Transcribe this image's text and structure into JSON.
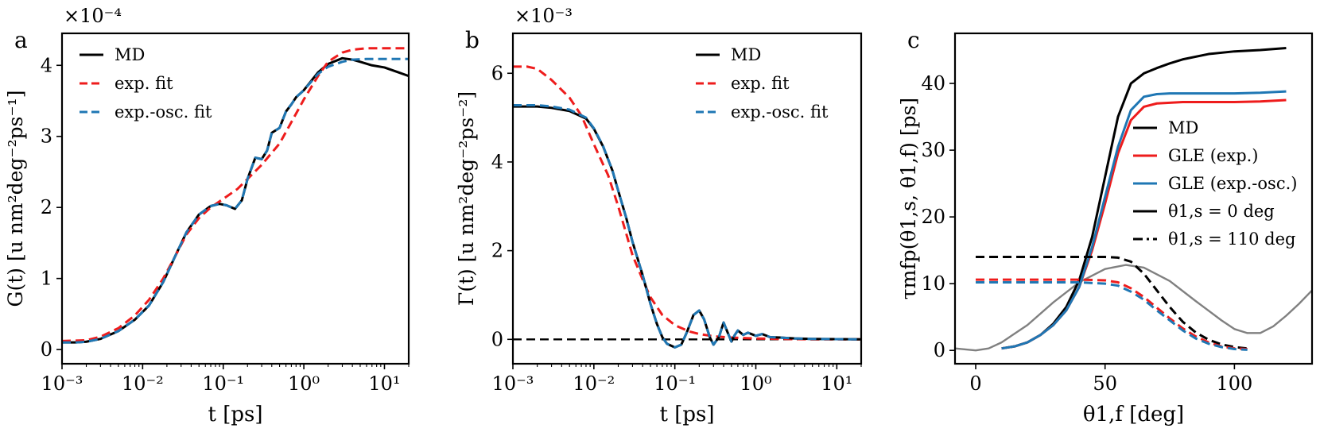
{
  "panels": [
    {
      "letter": "a",
      "exponent": "×10⁻⁴",
      "ylabel": "G(t) [u nm²deg⁻²ps⁻¹]",
      "xlabel": "t [ps]",
      "xscale": "log",
      "xlim": [
        0.001,
        20
      ],
      "ylim": [
        -0.2,
        4.45
      ],
      "yticks": [
        0,
        1,
        2,
        3,
        4
      ],
      "yticklabels": [
        "0",
        "1",
        "2",
        "3",
        "4"
      ],
      "xticks": [
        0.001,
        0.01,
        0.1,
        1,
        10
      ],
      "xticklabels": [
        "10⁻³",
        "10⁻²",
        "10⁻¹",
        "10⁰",
        "10¹"
      ],
      "legend": [
        {
          "label": "MD",
          "color": "#000000",
          "dash": "solid"
        },
        {
          "label": "exp. fit",
          "color": "#ee1c1c",
          "dash": "dashed"
        },
        {
          "label": "exp.-osc. fit",
          "color": "#1f77b4",
          "dash": "dashed"
        }
      ],
      "legend_position": "top-left",
      "series": [
        {
          "color": "#000000",
          "dash": "solid",
          "width": 3,
          "x": [
            0.001,
            0.0015,
            0.002,
            0.003,
            0.005,
            0.008,
            0.012,
            0.018,
            0.025,
            0.035,
            0.05,
            0.07,
            0.09,
            0.11,
            0.14,
            0.17,
            0.2,
            0.25,
            0.3,
            0.35,
            0.4,
            0.5,
            0.6,
            0.7,
            0.8,
            1.0,
            1.5,
            2.0,
            3.0,
            4.0,
            5.0,
            7.0,
            10.0,
            15.0,
            20.0
          ],
          "y": [
            0.1,
            0.1,
            0.11,
            0.15,
            0.26,
            0.42,
            0.62,
            0.95,
            1.3,
            1.65,
            1.9,
            2.02,
            2.05,
            2.03,
            1.98,
            2.1,
            2.4,
            2.7,
            2.68,
            2.8,
            3.05,
            3.12,
            3.35,
            3.45,
            3.55,
            3.65,
            3.9,
            4.02,
            4.1,
            4.08,
            4.05,
            4.0,
            3.97,
            3.9,
            3.85
          ]
        },
        {
          "color": "#ee1c1c",
          "dash": "dashed",
          "width": 3,
          "x": [
            0.001,
            0.002,
            0.003,
            0.005,
            0.008,
            0.012,
            0.018,
            0.025,
            0.035,
            0.05,
            0.07,
            0.1,
            0.15,
            0.2,
            0.3,
            0.5,
            0.7,
            1.0,
            1.5,
            2.0,
            3.0,
            4.0,
            6.0,
            10.0,
            20.0
          ],
          "y": [
            0.12,
            0.13,
            0.18,
            0.3,
            0.48,
            0.7,
            1.0,
            1.3,
            1.62,
            1.85,
            2.0,
            2.12,
            2.26,
            2.4,
            2.6,
            2.9,
            3.2,
            3.52,
            3.85,
            4.05,
            4.18,
            4.22,
            4.24,
            4.24,
            4.24
          ]
        },
        {
          "color": "#1f77b4",
          "dash": "dashed",
          "width": 3,
          "x": [
            0.001,
            0.0015,
            0.002,
            0.003,
            0.005,
            0.008,
            0.012,
            0.018,
            0.025,
            0.035,
            0.05,
            0.07,
            0.09,
            0.11,
            0.14,
            0.17,
            0.2,
            0.25,
            0.3,
            0.35,
            0.4,
            0.5,
            0.6,
            0.7,
            0.8,
            1.0,
            1.5,
            2.0,
            3.0,
            4.0,
            6.0,
            10.0,
            20.0
          ],
          "y": [
            0.1,
            0.1,
            0.11,
            0.15,
            0.26,
            0.42,
            0.62,
            0.95,
            1.3,
            1.65,
            1.9,
            2.02,
            2.05,
            2.03,
            1.98,
            2.1,
            2.4,
            2.7,
            2.68,
            2.8,
            3.05,
            3.12,
            3.35,
            3.45,
            3.55,
            3.65,
            3.88,
            3.98,
            4.05,
            4.08,
            4.09,
            4.09,
            4.09
          ]
        }
      ]
    },
    {
      "letter": "b",
      "exponent": "×10⁻³",
      "ylabel": "Γ(t) [u nm²deg⁻²ps⁻²]",
      "xlabel": "t [ps]",
      "xscale": "log",
      "xlim": [
        0.001,
        20
      ],
      "ylim": [
        -0.55,
        6.9
      ],
      "yticks": [
        0,
        2,
        4,
        6
      ],
      "yticklabels": [
        "0",
        "2",
        "4",
        "6"
      ],
      "xticks": [
        0.001,
        0.01,
        0.1,
        1,
        10
      ],
      "xticklabels": [
        "10⁻³",
        "10⁻²",
        "10⁻¹",
        "10⁰",
        "10¹"
      ],
      "legend": [
        {
          "label": "MD",
          "color": "#000000",
          "dash": "solid"
        },
        {
          "label": "exp. fit",
          "color": "#ee1c1c",
          "dash": "dashed"
        },
        {
          "label": "exp.-osc. fit",
          "color": "#1f77b4",
          "dash": "dashed"
        }
      ],
      "legend_position": "top-right",
      "series": [
        {
          "color": "#000000",
          "dash": "dashed",
          "width": 2.4,
          "x": [
            0.001,
            20
          ],
          "y": [
            0,
            0
          ]
        },
        {
          "color": "#ee1c1c",
          "dash": "dashed",
          "width": 3,
          "x": [
            0.001,
            0.0015,
            0.002,
            0.003,
            0.005,
            0.007,
            0.01,
            0.015,
            0.02,
            0.03,
            0.04,
            0.05,
            0.07,
            0.1,
            0.15,
            0.2,
            0.3,
            0.5,
            1.0,
            2.0,
            5.0,
            20.0
          ],
          "y": [
            6.15,
            6.15,
            6.1,
            5.85,
            5.45,
            5.05,
            4.4,
            3.7,
            3.0,
            1.9,
            1.35,
            0.95,
            0.55,
            0.32,
            0.18,
            0.12,
            0.07,
            0.04,
            0.02,
            0.01,
            0.0,
            0.0
          ]
        },
        {
          "color": "#000000",
          "dash": "solid",
          "width": 3,
          "x": [
            0.001,
            0.002,
            0.003,
            0.005,
            0.008,
            0.01,
            0.013,
            0.017,
            0.02,
            0.025,
            0.03,
            0.04,
            0.05,
            0.06,
            0.07,
            0.08,
            0.1,
            0.12,
            0.14,
            0.17,
            0.2,
            0.23,
            0.27,
            0.3,
            0.35,
            0.4,
            0.45,
            0.5,
            0.55,
            0.6,
            0.7,
            0.8,
            1.0,
            1.2,
            1.5,
            2.0,
            3.0,
            5.0,
            20.0
          ],
          "y": [
            5.25,
            5.25,
            5.22,
            5.15,
            4.98,
            4.75,
            4.35,
            3.8,
            3.35,
            2.75,
            2.2,
            1.45,
            0.8,
            0.35,
            0.05,
            -0.1,
            -0.18,
            -0.12,
            0.15,
            0.55,
            0.65,
            0.45,
            0.05,
            -0.12,
            0.05,
            0.38,
            0.15,
            -0.05,
            0.1,
            0.2,
            0.1,
            0.15,
            0.08,
            0.12,
            0.05,
            0.04,
            0.02,
            0.01,
            0.0
          ]
        },
        {
          "color": "#1f77b4",
          "dash": "dashed",
          "width": 3,
          "x": [
            0.001,
            0.002,
            0.003,
            0.005,
            0.008,
            0.01,
            0.013,
            0.017,
            0.02,
            0.025,
            0.03,
            0.04,
            0.05,
            0.06,
            0.07,
            0.08,
            0.1,
            0.12,
            0.14,
            0.17,
            0.2,
            0.23,
            0.27,
            0.3,
            0.35,
            0.4,
            0.45,
            0.5,
            0.55,
            0.6,
            0.7,
            0.8,
            1.0,
            1.2,
            1.5,
            2.0,
            3.0,
            5.0,
            20.0
          ],
          "y": [
            5.28,
            5.28,
            5.25,
            5.18,
            5.0,
            4.76,
            4.36,
            3.8,
            3.35,
            2.75,
            2.2,
            1.45,
            0.8,
            0.35,
            0.05,
            -0.1,
            -0.18,
            -0.12,
            0.15,
            0.55,
            0.65,
            0.45,
            0.05,
            -0.12,
            0.05,
            0.38,
            0.15,
            -0.05,
            0.1,
            0.2,
            0.1,
            0.15,
            0.08,
            0.12,
            0.05,
            0.04,
            0.02,
            0.01,
            0.0
          ]
        }
      ]
    },
    {
      "letter": "c",
      "exponent": "",
      "ylabel": "τmfp(θ1,s, θ1,f) [ps]",
      "xlabel": "θ1,f [deg]",
      "xscale": "linear",
      "xlim": [
        -8,
        130
      ],
      "ylim": [
        -2,
        47.5
      ],
      "yticks": [
        0,
        10,
        20,
        30,
        40
      ],
      "yticklabels": [
        "0",
        "10",
        "20",
        "30",
        "40"
      ],
      "xticks": [
        0,
        50,
        100
      ],
      "xticklabels": [
        "0",
        "50",
        "100"
      ],
      "legend": [
        {
          "label": "MD",
          "color": "#000000",
          "dash": "solid"
        },
        {
          "label": "GLE (exp.)",
          "color": "#ee1c1c",
          "dash": "solid"
        },
        {
          "label": "GLE (exp.-osc.)",
          "color": "#1f77b4",
          "dash": "solid"
        },
        {
          "label": "θ1,s = 0 deg",
          "color": "#000000",
          "dash": "solid"
        },
        {
          "label": "θ1,s = 110 deg",
          "color": "#000000",
          "dash": "dashdot"
        }
      ],
      "legend_position": "center-right",
      "series": [
        {
          "color": "#808080",
          "dash": "solid",
          "width": 2.4,
          "x": [
            -8,
            0,
            5,
            10,
            20,
            30,
            40,
            50,
            58,
            65,
            75,
            85,
            95,
            100,
            105,
            110,
            115,
            120,
            125,
            130
          ],
          "y": [
            0.3,
            0.0,
            0.3,
            1.2,
            3.8,
            7.2,
            10.2,
            12.2,
            12.8,
            12.4,
            10.4,
            7.4,
            4.5,
            3.2,
            2.6,
            2.6,
            3.6,
            5.2,
            7.0,
            9.0
          ]
        },
        {
          "color": "#000000",
          "dash": "solid",
          "width": 3,
          "x": [
            10,
            15,
            20,
            25,
            30,
            35,
            40,
            45,
            50,
            55,
            60,
            65,
            70,
            75,
            80,
            90,
            100,
            110,
            120
          ],
          "y": [
            0.3,
            0.6,
            1.2,
            2.3,
            4.0,
            6.5,
            10.5,
            17.0,
            26.0,
            35.0,
            40.0,
            41.5,
            42.3,
            43.0,
            43.6,
            44.4,
            44.8,
            45.0,
            45.3
          ]
        },
        {
          "color": "#ee1c1c",
          "dash": "solid",
          "width": 3,
          "x": [
            10,
            15,
            20,
            25,
            30,
            35,
            40,
            45,
            50,
            55,
            60,
            65,
            70,
            75,
            80,
            90,
            100,
            110,
            120
          ],
          "y": [
            0.3,
            0.6,
            1.2,
            2.3,
            3.8,
            6.0,
            9.5,
            15.0,
            22.0,
            29.5,
            34.5,
            36.5,
            37.0,
            37.1,
            37.2,
            37.2,
            37.2,
            37.3,
            37.5
          ]
        },
        {
          "color": "#1f77b4",
          "dash": "solid",
          "width": 3,
          "x": [
            10,
            15,
            20,
            25,
            30,
            35,
            40,
            45,
            50,
            55,
            60,
            65,
            70,
            75,
            80,
            90,
            100,
            110,
            120
          ],
          "y": [
            0.3,
            0.6,
            1.2,
            2.3,
            3.8,
            6.0,
            9.5,
            15.5,
            23.0,
            30.5,
            36.0,
            38.0,
            38.4,
            38.5,
            38.5,
            38.5,
            38.5,
            38.6,
            38.8
          ]
        },
        {
          "color": "#000000",
          "dash": "dashed",
          "width": 3,
          "x": [
            0,
            10,
            20,
            30,
            40,
            50,
            55,
            60,
            65,
            70,
            75,
            80,
            85,
            90,
            95,
            100,
            105
          ],
          "y": [
            14.0,
            14.0,
            14.0,
            14.0,
            14.0,
            14.0,
            13.9,
            13.3,
            11.5,
            9.0,
            6.5,
            4.3,
            2.7,
            1.6,
            0.9,
            0.5,
            0.3
          ]
        },
        {
          "color": "#ee1c1c",
          "dash": "dashed",
          "width": 3,
          "x": [
            0,
            10,
            20,
            30,
            40,
            50,
            55,
            60,
            65,
            70,
            75,
            80,
            85,
            90,
            95,
            100,
            105
          ],
          "y": [
            10.6,
            10.6,
            10.6,
            10.6,
            10.6,
            10.5,
            10.2,
            9.3,
            8.0,
            6.4,
            4.8,
            3.3,
            2.1,
            1.2,
            0.6,
            0.3,
            0.2
          ]
        },
        {
          "color": "#1f77b4",
          "dash": "dashed",
          "width": 3,
          "x": [
            0,
            10,
            20,
            30,
            40,
            50,
            55,
            60,
            65,
            70,
            75,
            80,
            85,
            90,
            95,
            100,
            105
          ],
          "y": [
            10.2,
            10.2,
            10.2,
            10.2,
            10.2,
            10.0,
            9.7,
            8.8,
            7.6,
            6.0,
            4.5,
            3.0,
            1.8,
            1.0,
            0.5,
            0.2,
            0.1
          ]
        }
      ]
    }
  ]
}
